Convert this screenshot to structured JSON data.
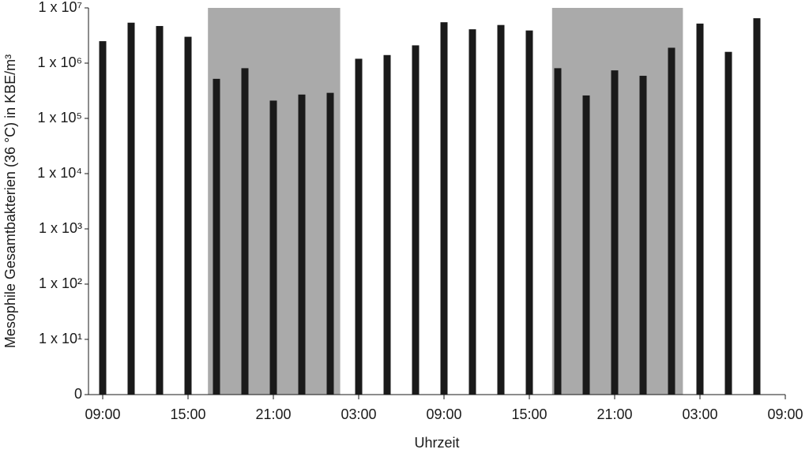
{
  "chart_data": {
    "type": "bar",
    "y_label": "Mesophile Gesamtbakterien (36 °C) in KBE/m³",
    "x_label": "Uhrzeit",
    "log_scale_y": true,
    "grid": false,
    "color": "#1a1a1a",
    "shade_color": "#aaaaaa",
    "x": [
      0,
      2,
      4,
      6,
      8,
      10,
      12,
      14,
      16,
      18,
      20,
      22,
      24,
      26,
      28,
      30,
      32,
      34,
      36,
      38,
      40,
      42,
      44,
      46
    ],
    "values": [
      2500000,
      5400000,
      4700000,
      3000000,
      520000,
      810000,
      210000,
      270000,
      290000,
      1200000,
      1400000,
      2100000,
      5500000,
      4100000,
      4900000,
      3900000,
      810000,
      260000,
      740000,
      590000,
      1900000,
      5200000,
      1600000,
      6500000
    ],
    "shaded_spans": [
      [
        7.4,
        16.7
      ],
      [
        31.6,
        40.8
      ]
    ],
    "xlim": [
      -1,
      48
    ],
    "xticks": [
      {
        "value": 0,
        "label": "09:00"
      },
      {
        "value": 6,
        "label": "15:00"
      },
      {
        "value": 12,
        "label": "21:00"
      },
      {
        "value": 18,
        "label": "03:00"
      },
      {
        "value": 24,
        "label": "09:00"
      },
      {
        "value": 30,
        "label": "15:00"
      },
      {
        "value": 36,
        "label": "21:00"
      },
      {
        "value": 42,
        "label": "03:00"
      },
      {
        "value": 48,
        "label": "09:00"
      }
    ],
    "ylim": [
      1,
      10000000
    ],
    "yticks": [
      {
        "value": 1,
        "label": "0"
      },
      {
        "value": 10,
        "label": "1 x 10¹"
      },
      {
        "value": 100,
        "label": "1 x 10²"
      },
      {
        "value": 1000,
        "label": "1 x 10³"
      },
      {
        "value": 10000,
        "label": "1 x 10⁴"
      },
      {
        "value": 100000,
        "label": "1 x 10⁵"
      },
      {
        "value": 1000000,
        "label": "1 x 10⁶"
      },
      {
        "value": 10000000,
        "label": "1 x 10⁷"
      }
    ]
  }
}
